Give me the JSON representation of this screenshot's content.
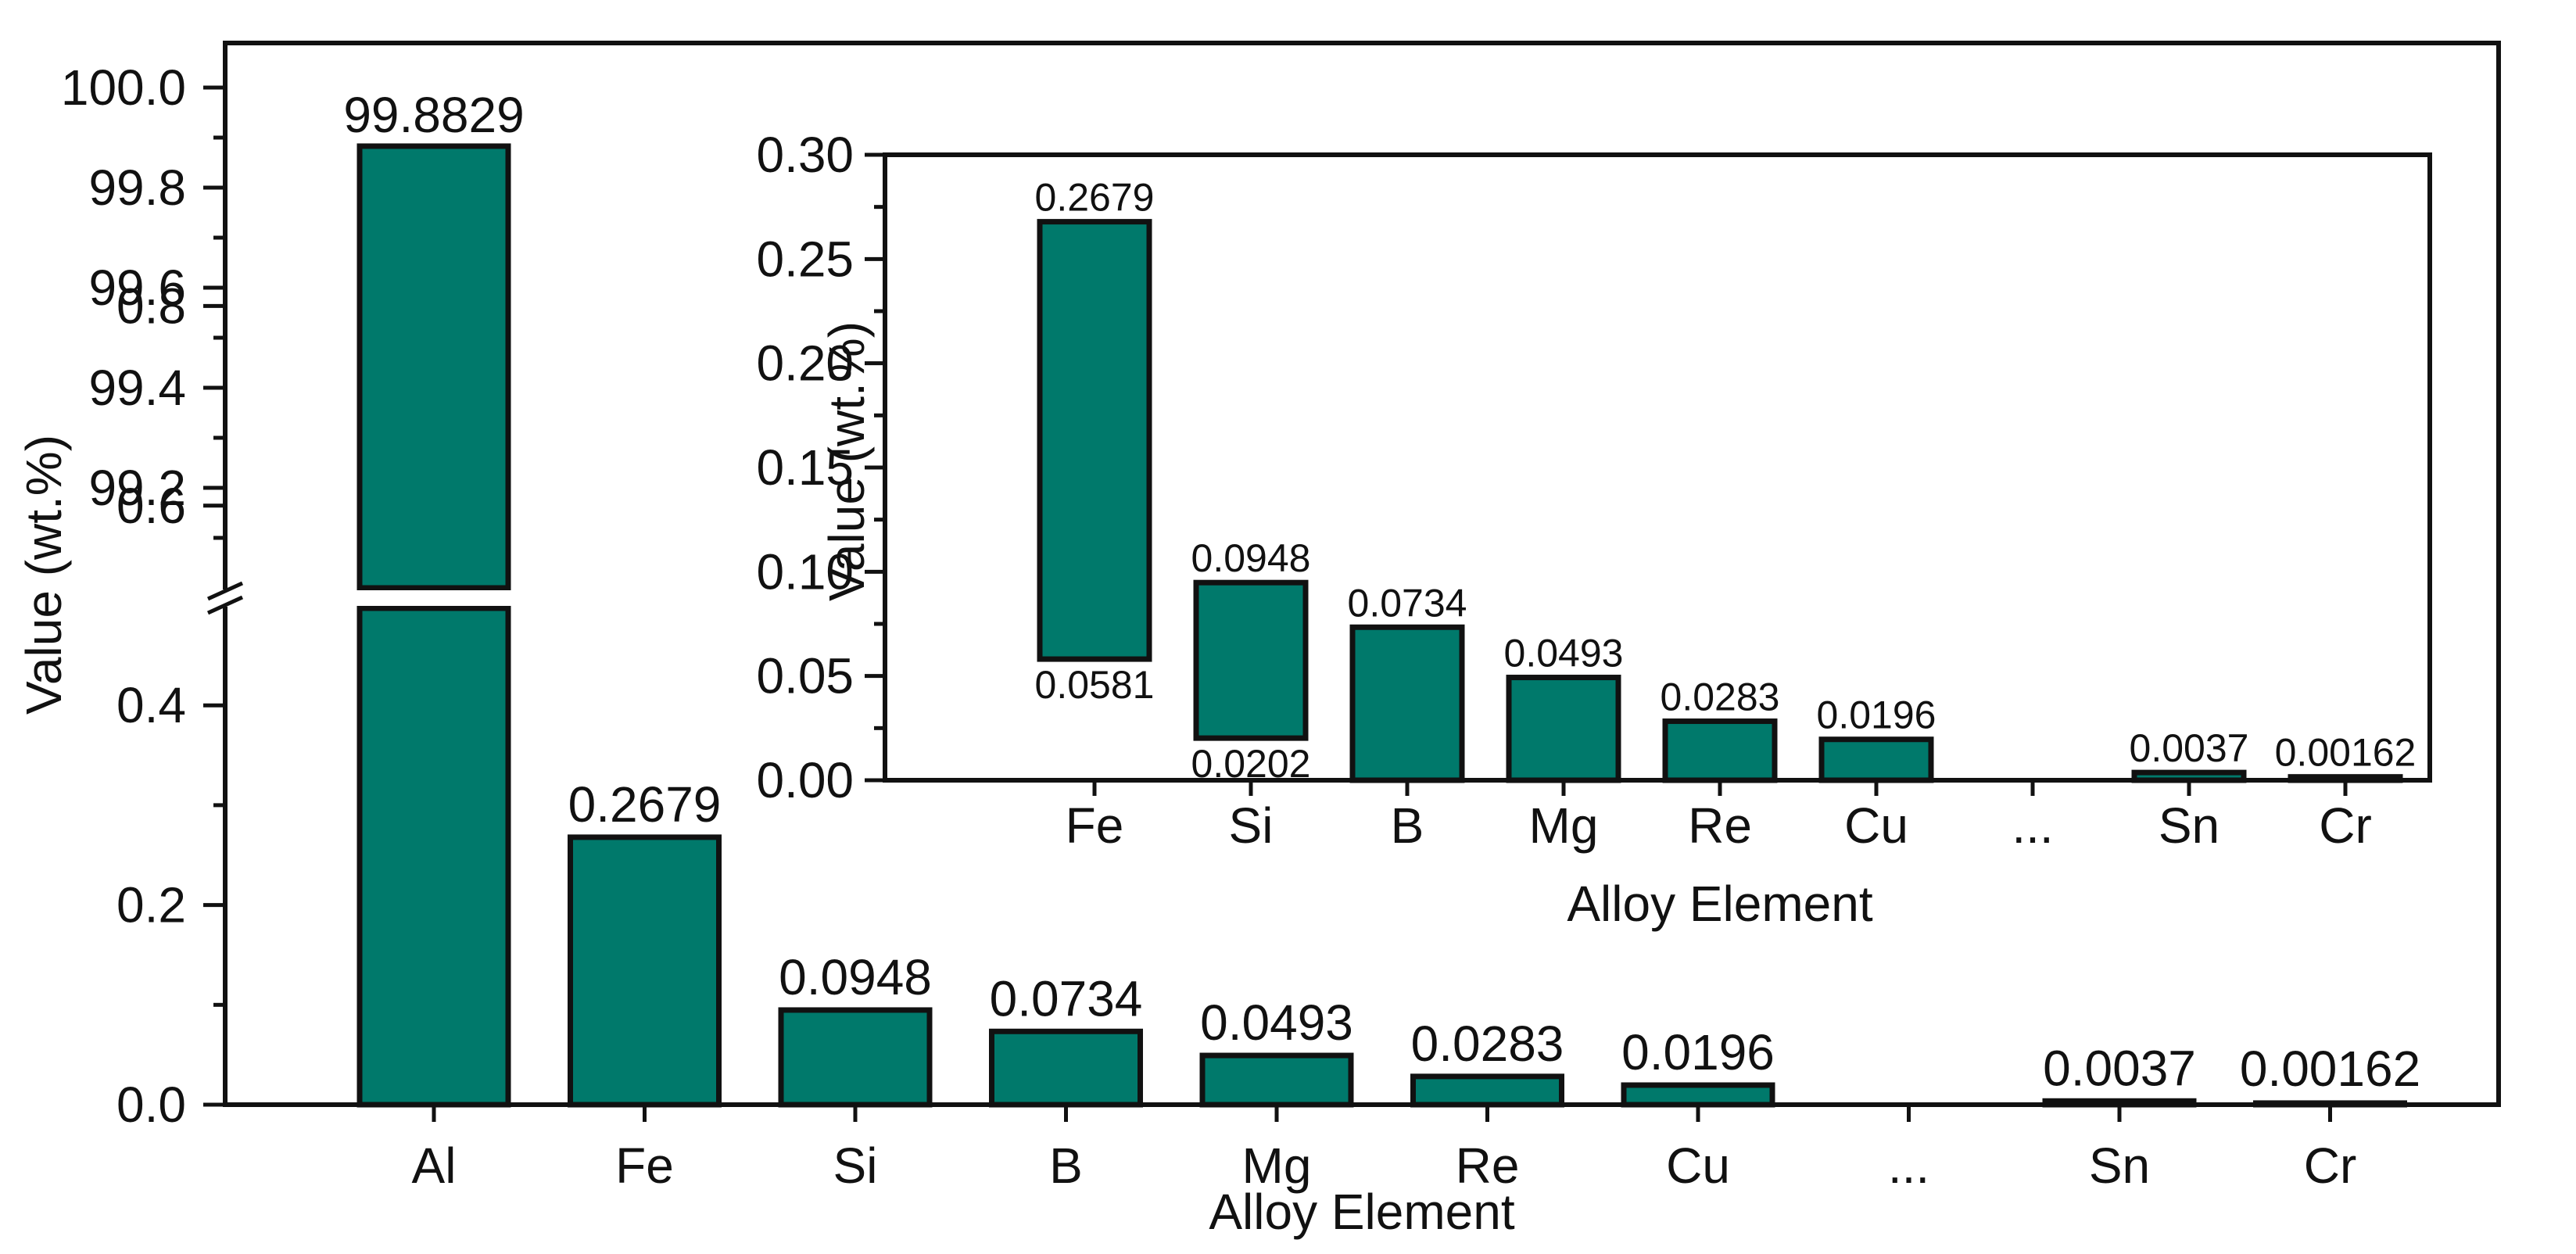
{
  "chart_data": [
    {
      "type": "bar",
      "role": "main",
      "categories": [
        "Al",
        "Fe",
        "Si",
        "B",
        "Mg",
        "Re",
        "Cu",
        "...",
        "Sn",
        "Cr"
      ],
      "values": [
        99.8829,
        0.2679,
        0.0948,
        0.0734,
        0.0493,
        0.0283,
        0.0196,
        null,
        0.0037,
        0.00162
      ],
      "data_labels": [
        "99.8829",
        "0.2679",
        "0.0948",
        "0.0734",
        "0.0493",
        "0.0283",
        "0.0196",
        "",
        "0.0037",
        "0.00162"
      ],
      "xlabel": "Alloy Element",
      "ylabel": "Value (wt.%)",
      "y_axis_break": true,
      "ylim_lower": [
        0,
        1.0
      ],
      "ylim_upper": [
        99.0,
        100.0
      ],
      "yticks_lower": [
        "0.0",
        "0.2",
        "0.4",
        "0.6",
        "0.8"
      ],
      "yticks_upper": [
        "99.2",
        "99.4",
        "99.6",
        "99.8",
        "100.0"
      ],
      "bar_color": "#00796B"
    },
    {
      "type": "bar",
      "role": "inset",
      "categories": [
        "Fe",
        "Si",
        "B",
        "Mg",
        "Re",
        "Cu",
        "...",
        "Sn",
        "Cr"
      ],
      "values": [
        0.2679,
        0.0948,
        0.0734,
        0.0493,
        0.0283,
        0.0196,
        null,
        0.0037,
        0.00162
      ],
      "bar_bottoms": [
        0.0581,
        0.0202,
        0,
        0,
        0,
        0,
        null,
        0,
        0
      ],
      "data_labels": [
        "0.2679",
        "0.0948",
        "0.0734",
        "0.0493",
        "0.0283",
        "0.0196",
        "",
        "0.0037",
        "0.00162"
      ],
      "bottom_labels": [
        "0.0581",
        "0.0202",
        "",
        "",
        "",
        "",
        "",
        "",
        ""
      ],
      "xlabel": "Alloy Element",
      "ylabel": "Value (wt.%)",
      "ylim": [
        0,
        0.3
      ],
      "yticks": [
        "0.00",
        "0.05",
        "0.10",
        "0.15",
        "0.20",
        "0.25",
        "0.30"
      ],
      "bar_color": "#00796B"
    }
  ]
}
